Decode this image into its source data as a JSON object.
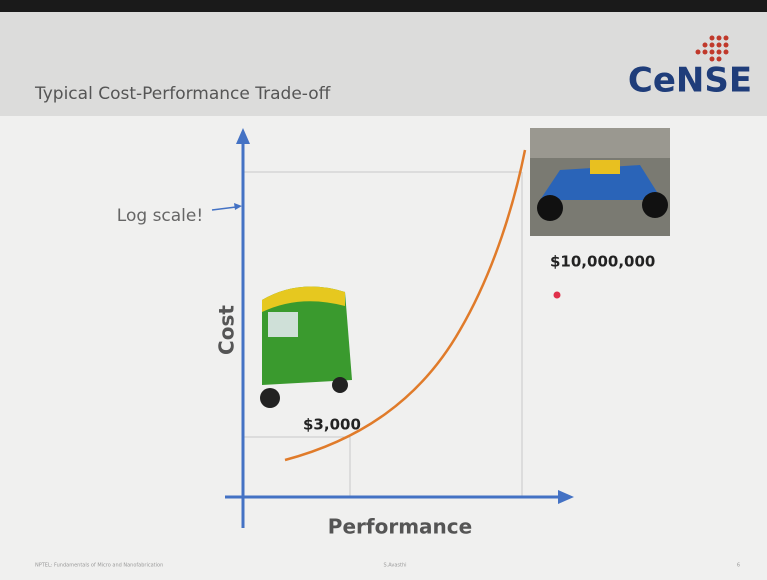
{
  "header": {
    "title": "Typical Cost-Performance Trade-off",
    "logo": "CeNSE"
  },
  "annotation": "Log scale!",
  "axes": {
    "y_label": "Cost",
    "x_label": "Performance"
  },
  "labels": {
    "low_cost": "$3,000",
    "high_cost": "$10,000,000"
  },
  "footer": {
    "left": "NPTEL: Fundamentals of Micro and Nanofabrication",
    "center": "S.Avasthi",
    "page": "6"
  }
}
